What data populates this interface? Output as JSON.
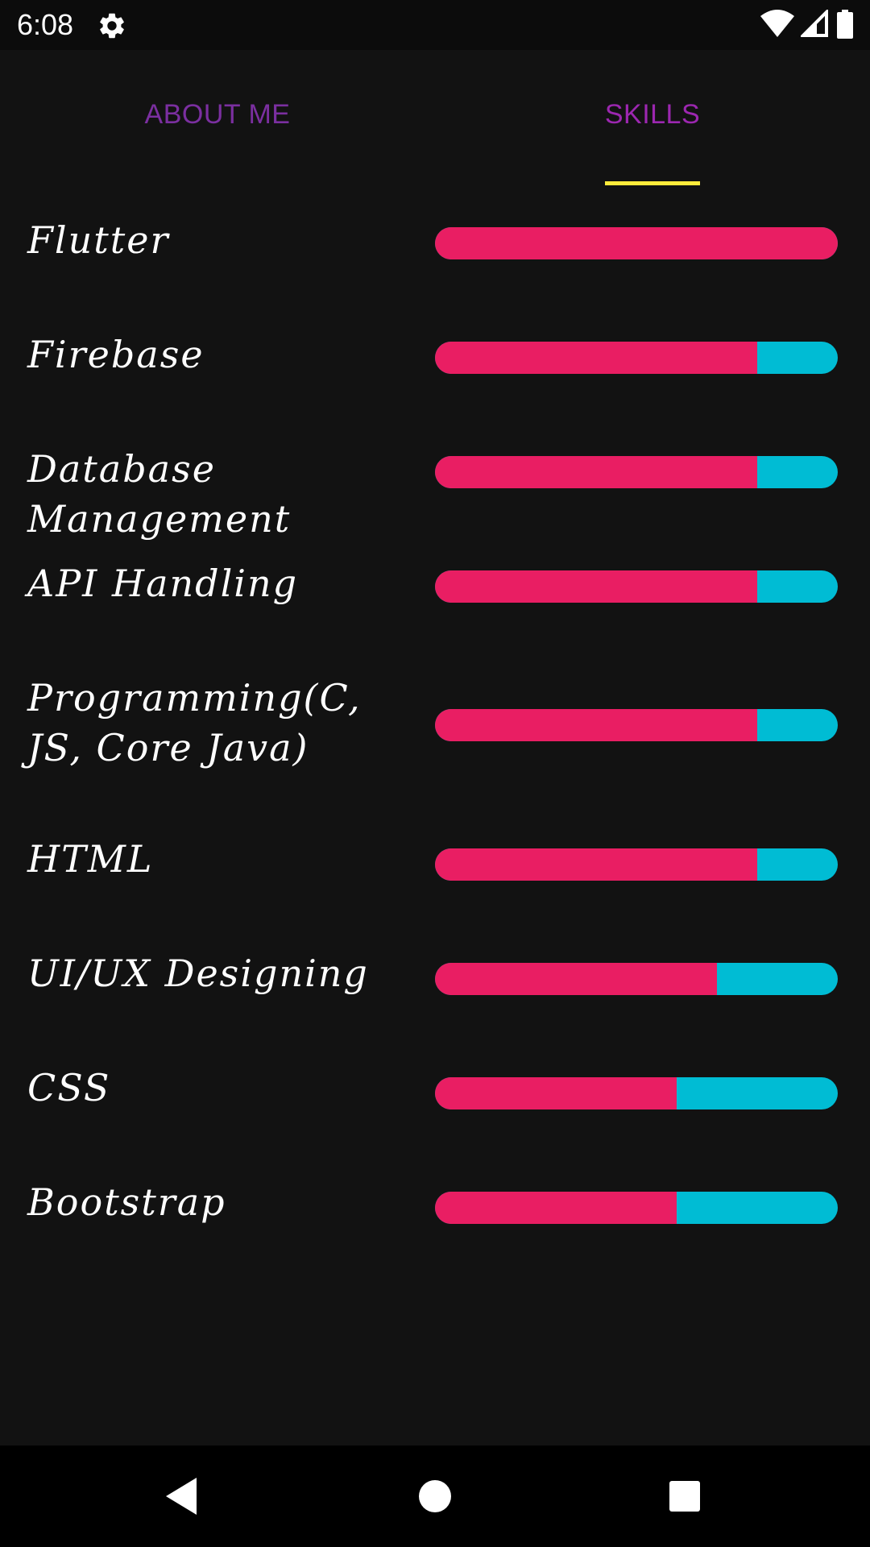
{
  "status_bar": {
    "time": "6:08",
    "icons": [
      "settings-gear-icon",
      "wifi-icon",
      "signal-icon",
      "battery-icon"
    ]
  },
  "tabs": [
    {
      "label": "ABOUT ME",
      "selected": false
    },
    {
      "label": "SKILLS",
      "selected": true
    }
  ],
  "colors": {
    "background": "#121212",
    "bar_fill": "#e91e63",
    "bar_track": "#00bcd4",
    "tab_indicator": "#ffeb3b",
    "tab_text": "#9c27b0"
  },
  "skills": [
    {
      "name": "Flutter",
      "level": 1.0
    },
    {
      "name": "Firebase",
      "level": 0.8
    },
    {
      "name": "Database Management",
      "level": 0.8
    },
    {
      "name": "API Handling",
      "level": 0.8
    },
    {
      "name": "Programming(C, JS, Core Java)",
      "level": 0.8
    },
    {
      "name": "HTML",
      "level": 0.8
    },
    {
      "name": "UI/UX Designing",
      "level": 0.7
    },
    {
      "name": "CSS",
      "level": 0.6
    },
    {
      "name": "Bootstrap",
      "level": 0.6
    }
  ],
  "nav_bar": {
    "buttons": [
      "back-icon",
      "home-icon",
      "recents-icon"
    ]
  }
}
